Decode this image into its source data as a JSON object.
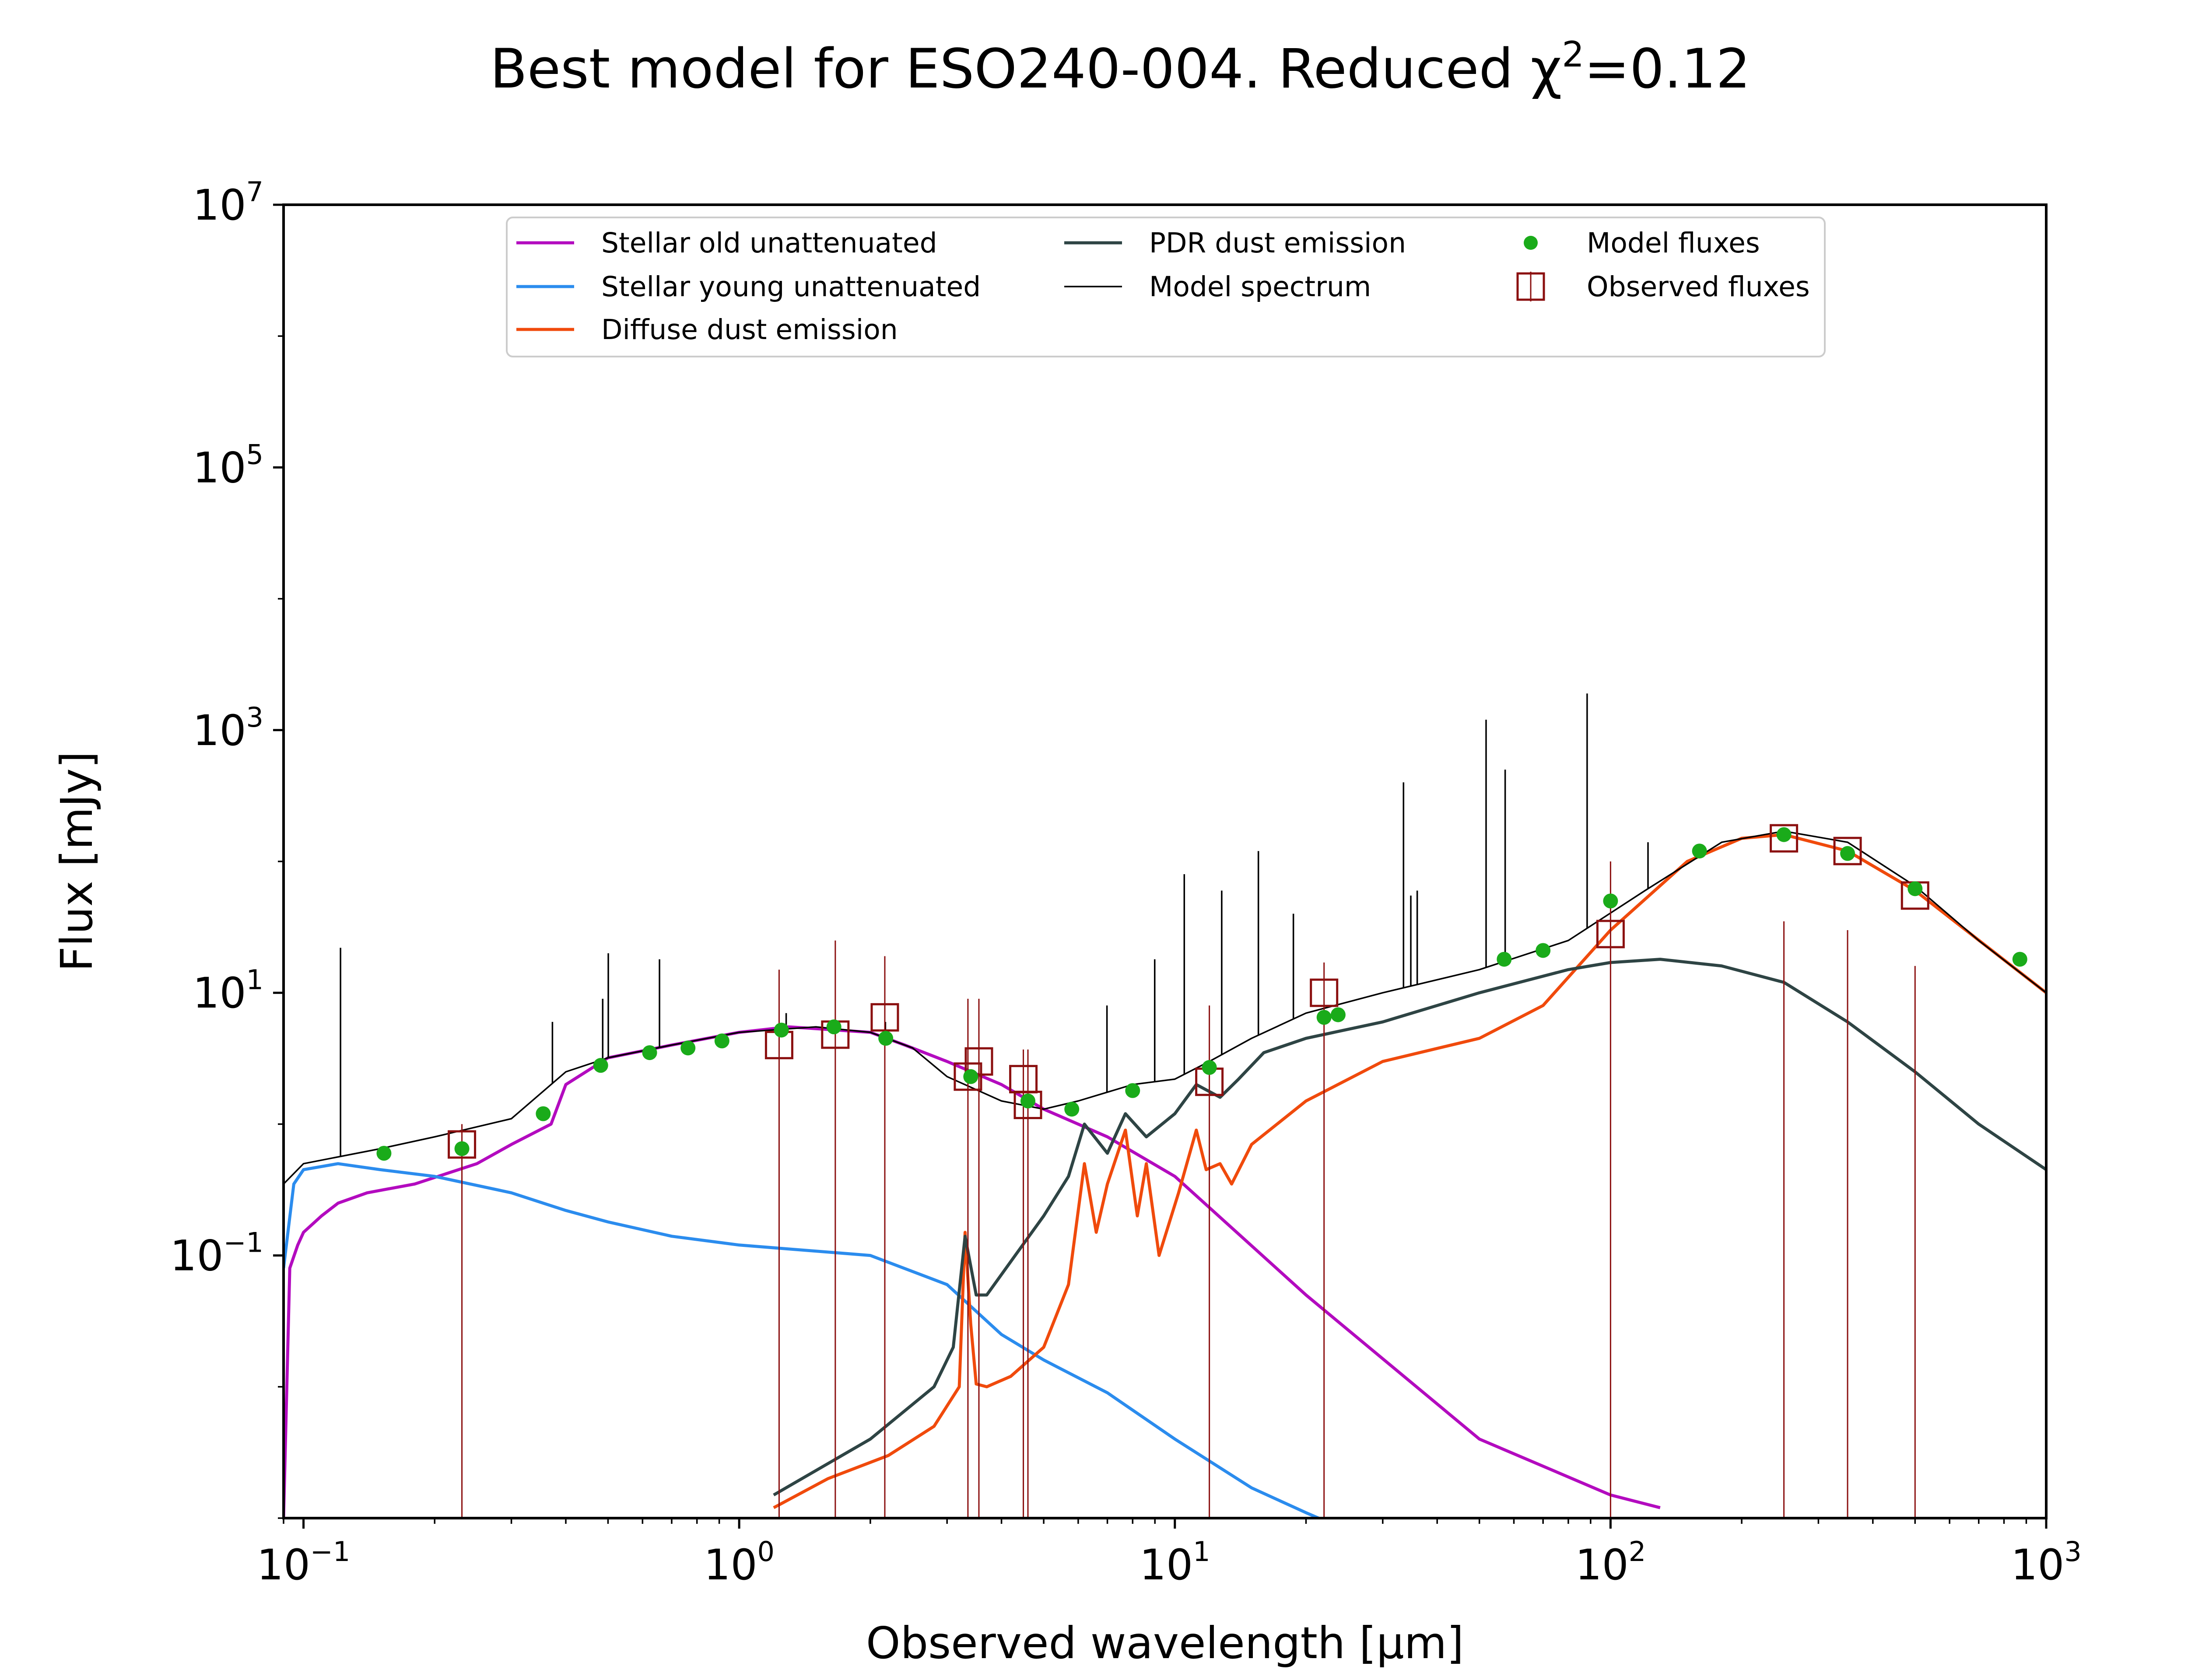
{
  "chart_data": {
    "type": "line",
    "title": "Best model for ESO240-004. Reduced χ²=0.12",
    "title_parts": {
      "prefix": "Best model for ESO240-004. Reduced χ",
      "sup": "2",
      "suffix": "=0.12"
    },
    "xlabel": "Observed wavelength [μm]",
    "ylabel": "Flux [mJy]",
    "xscale": "log",
    "yscale": "log",
    "xlim": [
      0.09,
      1000
    ],
    "ylim": [
      0.001,
      10000000
    ],
    "grid": false,
    "legend_position": "top-center",
    "x_ticks": [
      {
        "base": "10",
        "exp": "−1",
        "value": 0.1
      },
      {
        "base": "10",
        "exp": "0",
        "value": 1
      },
      {
        "base": "10",
        "exp": "1",
        "value": 10
      },
      {
        "base": "10",
        "exp": "2",
        "value": 100
      },
      {
        "base": "10",
        "exp": "3",
        "value": 1000
      }
    ],
    "y_ticks": [
      {
        "base": "10",
        "exp": "−1",
        "value": 0.1
      },
      {
        "base": "10",
        "exp": "1",
        "value": 10
      },
      {
        "base": "10",
        "exp": "3",
        "value": 1000
      },
      {
        "base": "10",
        "exp": "5",
        "value": 100000
      },
      {
        "base": "10",
        "exp": "7",
        "value": 10000000
      }
    ],
    "series": [
      {
        "name": "Stellar old unattenuated",
        "color": "#b30bbf",
        "style": "line",
        "x": [
          0.09,
          0.093,
          0.097,
          0.1,
          0.11,
          0.12,
          0.14,
          0.18,
          0.25,
          0.3,
          0.37,
          0.4,
          0.5,
          0.7,
          1.0,
          1.3,
          2.0,
          2.4,
          3.0,
          4.0,
          5.0,
          7.0,
          10.0,
          20.0,
          50.0,
          100.0,
          130.0
        ],
        "y": [
          0.001,
          0.08,
          0.12,
          0.15,
          0.2,
          0.25,
          0.3,
          0.35,
          0.5,
          0.7,
          1.0,
          2.0,
          3.2,
          4.0,
          5.0,
          5.5,
          5.0,
          4.0,
          3.0,
          2.0,
          1.3,
          0.8,
          0.4,
          0.05,
          0.004,
          0.0015,
          0.0012
        ]
      },
      {
        "name": "Stellar young unattenuated",
        "color": "#2b8cee",
        "style": "line",
        "x": [
          0.09,
          0.095,
          0.1,
          0.12,
          0.15,
          0.2,
          0.3,
          0.4,
          0.5,
          0.7,
          1.0,
          2.0,
          3.0,
          4.0,
          5.0,
          7.0,
          10.0,
          15.0,
          20.0,
          25.0
        ],
        "y": [
          0.08,
          0.35,
          0.45,
          0.5,
          0.45,
          0.4,
          0.3,
          0.22,
          0.18,
          0.14,
          0.12,
          0.1,
          0.06,
          0.025,
          0.016,
          0.009,
          0.004,
          0.0017,
          0.0011,
          0.0008
        ]
      },
      {
        "name": "Diffuse dust emission",
        "color": "#f04a0c",
        "style": "line",
        "x": [
          1.2,
          1.6,
          2.2,
          2.8,
          3.2,
          3.3,
          3.4,
          3.5,
          3.7,
          4.2,
          5.0,
          5.7,
          6.2,
          6.6,
          7.0,
          7.7,
          8.2,
          8.6,
          9.2,
          10.2,
          11.2,
          11.8,
          12.7,
          13.5,
          15.0,
          20.0,
          30.0,
          50.0,
          70.0,
          100.0,
          150.0,
          200.0,
          250.0,
          350.0,
          500.0,
          1000.0
        ],
        "y": [
          0.0012,
          0.002,
          0.003,
          0.005,
          0.01,
          0.15,
          0.03,
          0.0105,
          0.01,
          0.012,
          0.02,
          0.06,
          0.5,
          0.15,
          0.35,
          0.9,
          0.2,
          0.5,
          0.1,
          0.3,
          0.9,
          0.45,
          0.5,
          0.35,
          0.7,
          1.5,
          3.0,
          4.5,
          8.0,
          30.0,
          100.0,
          150.0,
          160.0,
          120.0,
          60.0,
          10.0
        ]
      },
      {
        "name": "PDR dust emission",
        "color": "#2e4444",
        "style": "line",
        "x": [
          1.2,
          2.0,
          2.8,
          3.1,
          3.3,
          3.5,
          3.7,
          4.3,
          5.0,
          5.7,
          6.2,
          7.0,
          7.7,
          8.6,
          10.0,
          11.2,
          12.7,
          14.0,
          16.0,
          20.0,
          30.0,
          50.0,
          80.0,
          100.0,
          130.0,
          180.0,
          250.0,
          350.0,
          500.0,
          700.0,
          1000.0
        ],
        "y": [
          0.0015,
          0.004,
          0.01,
          0.02,
          0.14,
          0.05,
          0.05,
          0.1,
          0.2,
          0.4,
          1.0,
          0.6,
          1.2,
          0.8,
          1.2,
          2.0,
          1.6,
          2.2,
          3.5,
          4.5,
          6.0,
          10.0,
          15.0,
          17.0,
          18.0,
          16.0,
          12.0,
          6.0,
          2.5,
          1.0,
          0.45
        ]
      },
      {
        "name": "Model spectrum",
        "color": "#000000",
        "style": "thin-line",
        "x": [
          0.09,
          0.1,
          0.15,
          0.2,
          0.3,
          0.4,
          0.5,
          0.7,
          1.0,
          1.5,
          2.0,
          2.5,
          3.0,
          4.0,
          5.0,
          6.0,
          8.0,
          10.0,
          12.0,
          15.0,
          20.0,
          30.0,
          50.0,
          80.0,
          120.0,
          180.0,
          250.0,
          350.0,
          500.0,
          700.0,
          1000.0
        ],
        "y": [
          0.35,
          0.5,
          0.65,
          0.8,
          1.1,
          2.5,
          3.2,
          4.0,
          5.0,
          5.5,
          5.0,
          3.8,
          2.3,
          1.5,
          1.3,
          1.5,
          2.0,
          2.2,
          3.0,
          4.5,
          7.0,
          10.0,
          15.0,
          25.0,
          60.0,
          140.0,
          170.0,
          140.0,
          65.0,
          25.0,
          10.0
        ],
        "emission_lines": [
          {
            "x": 0.1216,
            "y": 22.0
          },
          {
            "x": 0.3727,
            "y": 6.0
          },
          {
            "x": 0.4861,
            "y": 9.0
          },
          {
            "x": 0.5007,
            "y": 20.0
          },
          {
            "x": 0.6563,
            "y": 18.0
          },
          {
            "x": 1.282,
            "y": 7.0
          },
          {
            "x": 2.166,
            "y": 6.0
          },
          {
            "x": 6.985,
            "y": 8.0
          },
          {
            "x": 8.99,
            "y": 18.0
          },
          {
            "x": 10.51,
            "y": 80.0
          },
          {
            "x": 12.81,
            "y": 60.0
          },
          {
            "x": 15.55,
            "y": 120.0
          },
          {
            "x": 18.71,
            "y": 40.0
          },
          {
            "x": 33.48,
            "y": 400.0
          },
          {
            "x": 34.8,
            "y": 55.0
          },
          {
            "x": 36.0,
            "y": 60.0
          },
          {
            "x": 51.8,
            "y": 1200.0
          },
          {
            "x": 57.3,
            "y": 500.0
          },
          {
            "x": 88.36,
            "y": 1900.0
          },
          {
            "x": 121.9,
            "y": 140.0
          },
          {
            "x": 157.7,
            "y": 120.0
          }
        ]
      },
      {
        "name": "Model fluxes",
        "color": "#1aab1a",
        "style": "markers",
        "x": [
          0.153,
          0.231,
          0.355,
          0.481,
          0.623,
          0.763,
          0.913,
          1.25,
          1.65,
          2.17,
          3.4,
          4.6,
          5.8,
          8.0,
          12.0,
          22.0,
          23.7,
          57.0,
          70.0,
          100.0,
          160.0,
          250.0,
          350.0,
          500.0,
          870.0
        ],
        "y": [
          0.6,
          0.65,
          1.2,
          2.8,
          3.5,
          3.8,
          4.3,
          5.2,
          5.5,
          4.5,
          2.3,
          1.5,
          1.3,
          1.8,
          2.7,
          6.5,
          6.8,
          18.0,
          21.0,
          50.0,
          120.0,
          160.0,
          115.0,
          62.0,
          18.0
        ]
      },
      {
        "name": "Observed fluxes",
        "color": "#8b1010",
        "style": "squares",
        "x": [
          0.231,
          1.235,
          1.662,
          2.159,
          3.35,
          3.55,
          4.49,
          4.6,
          12.0,
          22.0,
          100.0,
          250.0,
          350.0,
          500.0
        ],
        "y": [
          0.7,
          4.0,
          4.8,
          6.5,
          2.3,
          3.0,
          2.2,
          1.4,
          2.1,
          10.0,
          28.0,
          150.0,
          120.0,
          55.0
        ],
        "err_high": [
          1.0,
          15.0,
          25.0,
          19.0,
          9.0,
          9.0,
          3.7,
          3.7,
          8.0,
          17.0,
          100.0,
          35.0,
          30.0,
          16.0
        ]
      }
    ]
  }
}
